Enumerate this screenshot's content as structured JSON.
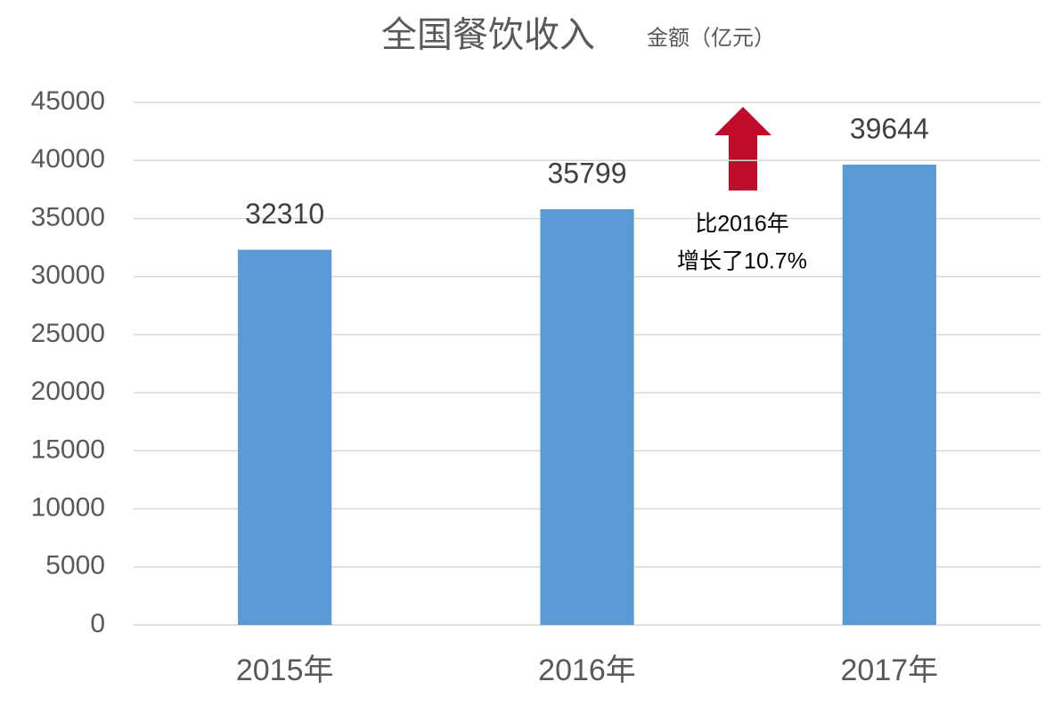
{
  "chart_data": {
    "type": "bar",
    "title": "全国餐饮收入",
    "subtitle": "金额（亿元）",
    "categories": [
      "2015年",
      "2016年",
      "2017年"
    ],
    "values": [
      32310,
      35799,
      39644
    ],
    "color": "#5b9bd5",
    "ylim": [
      0,
      45000
    ],
    "yticks": [
      0,
      5000,
      10000,
      15000,
      20000,
      25000,
      30000,
      35000,
      40000,
      45000
    ],
    "grid": true,
    "annotation": [
      "比2016年",
      "增长了10.7%"
    ]
  }
}
